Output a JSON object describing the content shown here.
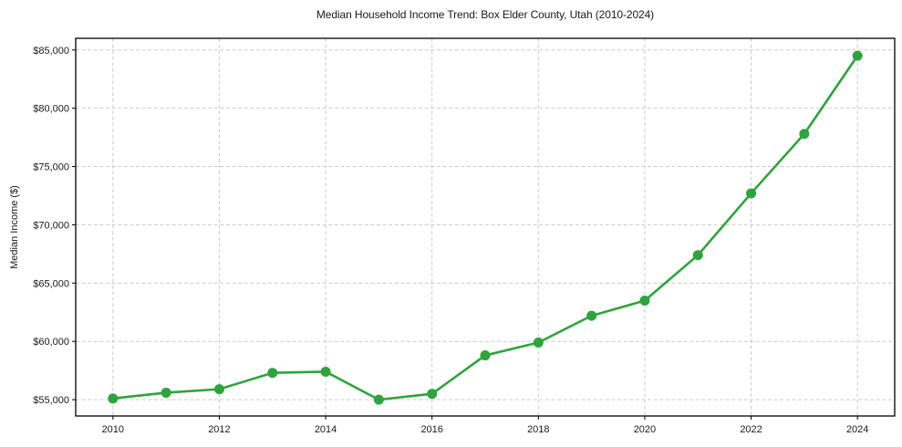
{
  "chart_data": {
    "type": "line",
    "title": "Median Household Income Trend: Box Elder County, Utah (2010-2024)",
    "xlabel": "",
    "ylabel": "Median Income ($)",
    "x": [
      2010,
      2011,
      2012,
      2013,
      2014,
      2015,
      2016,
      2017,
      2018,
      2019,
      2020,
      2021,
      2022,
      2023,
      2024
    ],
    "series": [
      {
        "name": "Median household income",
        "values": [
          55100,
          55600,
          55900,
          57300,
          57400,
          55000,
          55500,
          58800,
          59900,
          62200,
          63500,
          67400,
          72700,
          77800,
          84500
        ]
      }
    ],
    "xticks": {
      "values": [
        2010,
        2012,
        2014,
        2016,
        2018,
        2020,
        2022,
        2024
      ],
      "labels": [
        "2010",
        "2012",
        "2014",
        "2016",
        "2018",
        "2020",
        "2022",
        "2024"
      ]
    },
    "yticks": {
      "values": [
        55000,
        60000,
        65000,
        70000,
        75000,
        80000,
        85000
      ],
      "labels": [
        "$55,000",
        "$60,000",
        "$65,000",
        "$70,000",
        "$75,000",
        "$80,000",
        "$85,000"
      ]
    },
    "xlim": [
      2009.3,
      2024.7
    ],
    "ylim": [
      53600,
      86000
    ],
    "grid": true,
    "legend": "none",
    "marker": "circle",
    "colors": {
      "line": "#2ea43c",
      "marker": "#2ea43c",
      "grid": "#cccccc",
      "spine": "#000000",
      "text": "#1a1a1a",
      "background": "#ffffff"
    }
  }
}
